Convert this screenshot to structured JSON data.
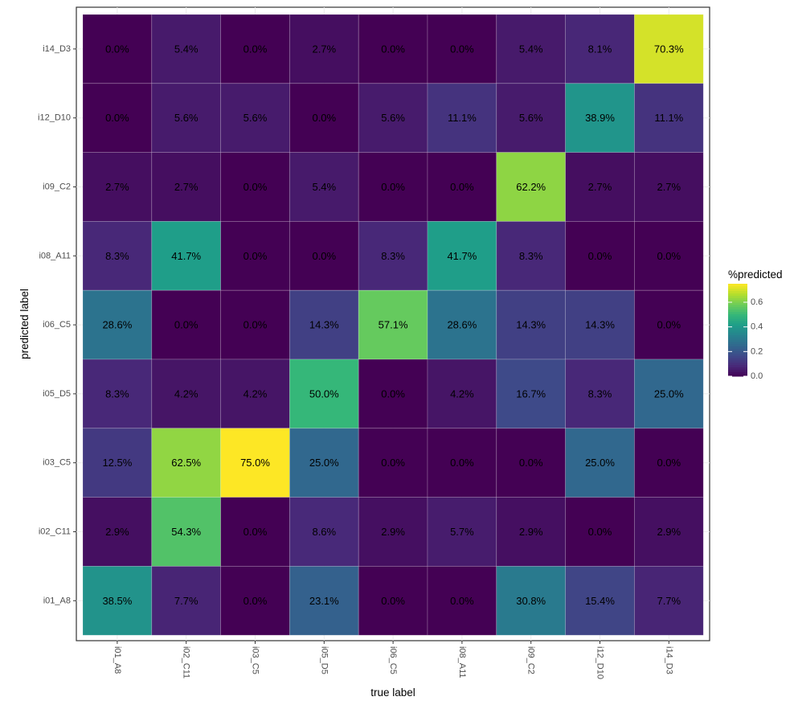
{
  "chart_data": {
    "type": "heatmap",
    "xlabel": "true label",
    "ylabel": "predicted label",
    "x_categories": [
      "i01_A8",
      "i02_C11",
      "i03_C5",
      "i05_D5",
      "i06_C5",
      "i08_A11",
      "i09_C2",
      "i12_D10",
      "i14_D3"
    ],
    "y_categories_top_to_bottom": [
      "i14_D3",
      "i12_D10",
      "i09_C2",
      "i08_A11",
      "i06_C5",
      "i05_D5",
      "i03_C5",
      "i02_C11",
      "i01_A8"
    ],
    "values_percent_rows_top_to_bottom": [
      [
        0.0,
        5.4,
        0.0,
        2.7,
        0.0,
        0.0,
        5.4,
        8.1,
        70.3
      ],
      [
        0.0,
        5.6,
        5.6,
        0.0,
        5.6,
        11.1,
        5.6,
        38.9,
        11.1
      ],
      [
        2.7,
        2.7,
        0.0,
        5.4,
        0.0,
        0.0,
        62.2,
        2.7,
        2.7
      ],
      [
        8.3,
        41.7,
        0.0,
        0.0,
        8.3,
        41.7,
        8.3,
        0.0,
        0.0
      ],
      [
        28.6,
        0.0,
        0.0,
        14.3,
        57.1,
        28.6,
        14.3,
        14.3,
        0.0
      ],
      [
        8.3,
        4.2,
        4.2,
        50.0,
        0.0,
        4.2,
        16.7,
        8.3,
        25.0
      ],
      [
        12.5,
        62.5,
        75.0,
        25.0,
        0.0,
        0.0,
        0.0,
        25.0,
        0.0
      ],
      [
        2.9,
        54.3,
        0.0,
        8.6,
        2.9,
        5.7,
        2.9,
        0.0,
        2.9
      ],
      [
        38.5,
        7.7,
        0.0,
        23.1,
        0.0,
        0.0,
        30.8,
        15.4,
        7.7
      ]
    ],
    "legend": {
      "title": "%predicted",
      "ticks": [
        "0.0",
        "0.2",
        "0.4",
        "0.6"
      ],
      "tick_values": [
        0,
        0.2,
        0.4,
        0.6
      ],
      "range": [
        0,
        0.75
      ],
      "colormap": "viridis",
      "placement": "right"
    },
    "grid": true
  }
}
